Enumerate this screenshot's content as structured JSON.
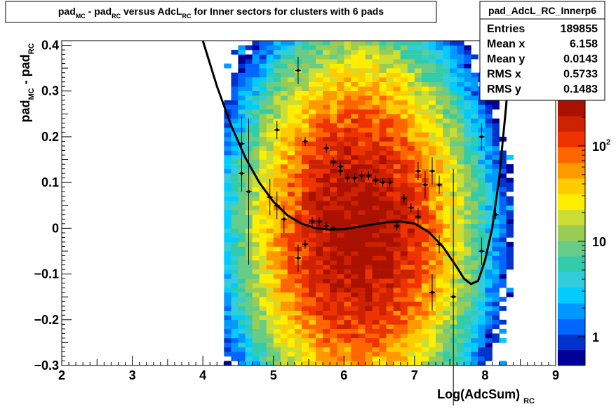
{
  "chart_data": {
    "type": "heatmap",
    "title": {
      "parts": [
        {
          "t": "pad",
          "sub": false
        },
        {
          "t": "MC",
          "sub": true
        },
        {
          "t": " - pad",
          "sub": false
        },
        {
          "t": "RC",
          "sub": true
        },
        {
          "t": " versus AdcL",
          "sub": false
        },
        {
          "t": "RC",
          "sub": true
        },
        {
          "t": " for Inner sectors for clusters with 6 pads",
          "sub": false
        }
      ]
    },
    "xlabel": {
      "main": "Log(AdcSum)",
      "sub": "RC"
    },
    "ylabel": {
      "parts": [
        {
          "t": "pad",
          "sub": false
        },
        {
          "t": "MC",
          "sub": true
        },
        {
          "t": " - pad",
          "sub": false
        },
        {
          "t": "RC",
          "sub": true
        }
      ]
    },
    "xlim": [
      2,
      9
    ],
    "ylim": [
      -0.3,
      0.41
    ],
    "x_ticks": [
      "2",
      "3",
      "4",
      "5",
      "6",
      "7",
      "8",
      "9"
    ],
    "y_ticks": [
      "−0.3",
      "−0.2",
      "−0.1",
      "0",
      "0.1",
      "0.2",
      "0.3",
      "0.4"
    ],
    "y_tick_values": [
      -0.3,
      -0.2,
      -0.1,
      0,
      0.1,
      0.2,
      0.3,
      0.4
    ],
    "stats": {
      "name": "pad_AdcL_RC_Innerp6",
      "rows": [
        {
          "label": "Entries",
          "value": "189855"
        },
        {
          "label": "Mean x",
          "value": "6.158"
        },
        {
          "label": "Mean y",
          "value": "0.0143"
        },
        {
          "label": "RMS x",
          "value": "0.5733"
        },
        {
          "label": "RMS y",
          "value": "0.1483"
        }
      ]
    },
    "colorbar": {
      "scale": "log",
      "range": [
        0.5,
        300
      ],
      "labels": [
        {
          "text": "1",
          "value": 1,
          "sup": ""
        },
        {
          "text": "10",
          "value": 10,
          "sup": ""
        },
        {
          "text": "10",
          "value": 100,
          "sup": "2"
        }
      ],
      "palette": [
        "#000099",
        "#0033cc",
        "#0066ff",
        "#0099ff",
        "#00ccff",
        "#33ccdd",
        "#33ccaa",
        "#66cc88",
        "#99cc55",
        "#ccdd33",
        "#ffee00",
        "#ffcc00",
        "#ff9900",
        "#ff6600",
        "#ee3300",
        "#cc2200",
        "#aa1100"
      ]
    },
    "heatmap": {
      "x_center": 6.2,
      "y_center": 0.0,
      "x_sigma": 0.62,
      "y_sigma": 0.16,
      "peak": 300
    },
    "profile_points": [
      {
        "x": 4.55,
        "y": 0.185,
        "err": 0.06
      },
      {
        "x": 4.55,
        "y": 0.12,
        "err": 0.04
      },
      {
        "x": 4.65,
        "y": 0.08,
        "err": 0.16
      },
      {
        "x": 4.95,
        "y": 0.068,
        "err": 0.04
      },
      {
        "x": 5.05,
        "y": 0.215,
        "err": 0.02
      },
      {
        "x": 5.05,
        "y": 0.05,
        "err": 0.03
      },
      {
        "x": 5.15,
        "y": 0.02,
        "err": 0.03
      },
      {
        "x": 5.35,
        "y": 0.345,
        "err": 0.03
      },
      {
        "x": 5.35,
        "y": -0.065,
        "err": 0.03
      },
      {
        "x": 5.45,
        "y": -0.035,
        "err": 0.01
      },
      {
        "x": 5.45,
        "y": 0.19,
        "err": 0.01
      },
      {
        "x": 5.55,
        "y": 0.015,
        "err": 0.01
      },
      {
        "x": 5.65,
        "y": 0.015,
        "err": 0.01
      },
      {
        "x": 5.75,
        "y": 0.175,
        "err": 0.01
      },
      {
        "x": 5.75,
        "y": 0.005,
        "err": 0.01
      },
      {
        "x": 5.85,
        "y": 0.145,
        "err": 0.01
      },
      {
        "x": 5.85,
        "y": 0.0,
        "err": 0.005
      },
      {
        "x": 5.95,
        "y": 0.135,
        "err": 0.01
      },
      {
        "x": 5.95,
        "y": 0.125,
        "err": 0.01
      },
      {
        "x": 6.05,
        "y": 0.11,
        "err": 0.01
      },
      {
        "x": 6.15,
        "y": 0.11,
        "err": 0.01
      },
      {
        "x": 6.25,
        "y": 0.115,
        "err": 0.01
      },
      {
        "x": 6.35,
        "y": 0.115,
        "err": 0.01
      },
      {
        "x": 6.45,
        "y": 0.105,
        "err": 0.01
      },
      {
        "x": 6.55,
        "y": 0.1,
        "err": 0.01
      },
      {
        "x": 6.65,
        "y": 0.1,
        "err": 0.01
      },
      {
        "x": 6.75,
        "y": 0.005,
        "err": 0.01
      },
      {
        "x": 6.85,
        "y": 0.065,
        "err": 0.01
      },
      {
        "x": 6.95,
        "y": 0.045,
        "err": 0.01
      },
      {
        "x": 7.05,
        "y": 0.025,
        "err": 0.02
      },
      {
        "x": 7.05,
        "y": 0.125,
        "err": 0.02
      },
      {
        "x": 7.15,
        "y": 0.095,
        "err": 0.03
      },
      {
        "x": 7.25,
        "y": 0.125,
        "err": 0.03
      },
      {
        "x": 7.25,
        "y": -0.14,
        "err": 0.04
      },
      {
        "x": 7.35,
        "y": 0.095,
        "err": 0.02
      },
      {
        "x": 7.35,
        "y": -0.035,
        "err": 0.02
      },
      {
        "x": 7.55,
        "y": -0.15,
        "err": 0.28
      },
      {
        "x": 7.95,
        "y": 0.2,
        "err": 0.03
      },
      {
        "x": 7.95,
        "y": -0.05,
        "err": 0.03
      },
      {
        "x": 8.15,
        "y": 0.03,
        "err": 0.01
      }
    ],
    "fit_curve": [
      [
        4.0,
        0.41
      ],
      [
        4.2,
        0.31
      ],
      [
        4.4,
        0.225
      ],
      [
        4.6,
        0.155
      ],
      [
        4.8,
        0.1
      ],
      [
        5.0,
        0.058
      ],
      [
        5.2,
        0.028
      ],
      [
        5.4,
        0.01
      ],
      [
        5.6,
        0.0
      ],
      [
        5.8,
        -0.003
      ],
      [
        6.0,
        -0.002
      ],
      [
        6.2,
        0.003
      ],
      [
        6.4,
        0.008
      ],
      [
        6.6,
        0.013
      ],
      [
        6.8,
        0.015
      ],
      [
        7.0,
        0.01
      ],
      [
        7.2,
        -0.008
      ],
      [
        7.4,
        -0.04
      ],
      [
        7.6,
        -0.085
      ],
      [
        7.7,
        -0.11
      ],
      [
        7.8,
        -0.122
      ],
      [
        7.9,
        -0.115
      ],
      [
        8.0,
        -0.07
      ],
      [
        8.1,
        0.0
      ],
      [
        8.2,
        0.11
      ],
      [
        8.3,
        0.27
      ],
      [
        8.36,
        0.41
      ]
    ]
  }
}
